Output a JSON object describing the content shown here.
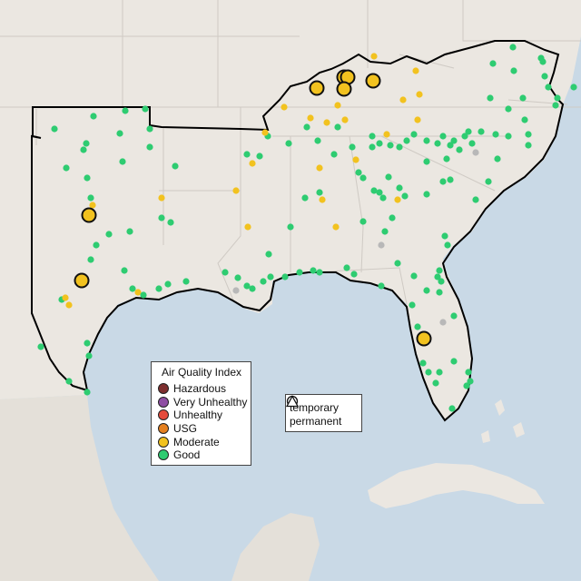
{
  "legend": {
    "title": "Air Quality Index",
    "categories": [
      {
        "label": "Hazardous",
        "color": "#7e2f2f"
      },
      {
        "label": "Very Unhealthy",
        "color": "#8e4ea3"
      },
      {
        "label": "Unhealthy",
        "color": "#e54b3c"
      },
      {
        "label": "USG",
        "color": "#e5801f"
      },
      {
        "label": "Moderate",
        "color": "#f2c21f"
      },
      {
        "label": "Good",
        "color": "#2ecc71"
      }
    ]
  },
  "monitor_type_legend": {
    "items": [
      {
        "label": "temporary",
        "shape": "circle-icon"
      },
      {
        "label": "permanent",
        "shape": "triangle-icon"
      }
    ]
  },
  "colors": {
    "water": "#c9d9e6",
    "land": "#ebe7e1",
    "no_data": "#b8b8b8",
    "region_outline": "#000000"
  }
}
